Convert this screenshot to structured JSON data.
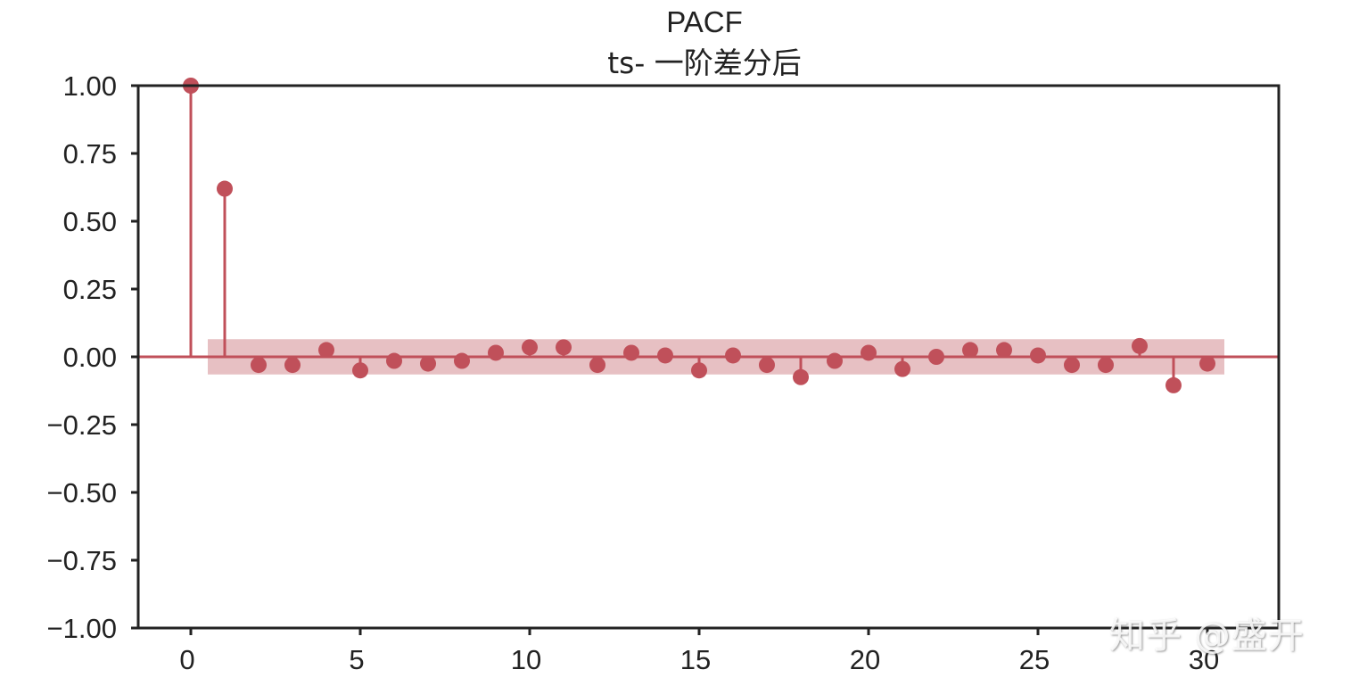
{
  "chart_data": {
    "type": "stem",
    "title": "PACF",
    "subtitle": "ts- 一阶差分后",
    "xlabel": "",
    "ylabel": "",
    "xlim": [
      -1.5,
      32.2
    ],
    "ylim": [
      -1.0,
      1.0
    ],
    "x_ticks": [
      0,
      5,
      10,
      15,
      20,
      25,
      30
    ],
    "x_tick_labels": [
      "0",
      "5",
      "10",
      "15",
      "20",
      "25",
      "30"
    ],
    "y_ticks": [
      1.0,
      0.75,
      0.5,
      0.25,
      0.0,
      -0.25,
      -0.5,
      -0.75,
      -1.0
    ],
    "y_tick_labels": [
      "1.00",
      "0.75",
      "0.50",
      "0.25",
      "0.00",
      "−0.25",
      "−0.50",
      "−0.75",
      "−1.00"
    ],
    "grid": false,
    "lags": [
      0,
      1,
      2,
      3,
      4,
      5,
      6,
      7,
      8,
      9,
      10,
      11,
      12,
      13,
      14,
      15,
      16,
      17,
      18,
      19,
      20,
      21,
      22,
      23,
      24,
      25,
      26,
      27,
      28,
      29,
      30
    ],
    "values": [
      1.0,
      0.62,
      -0.03,
      -0.03,
      0.025,
      -0.05,
      -0.015,
      -0.025,
      -0.015,
      0.015,
      0.035,
      0.035,
      -0.03,
      0.015,
      0.005,
      -0.05,
      0.005,
      -0.03,
      -0.075,
      -0.015,
      0.015,
      -0.045,
      0.0,
      0.025,
      0.025,
      0.005,
      -0.03,
      -0.03,
      0.04,
      -0.105,
      -0.025
    ],
    "confidence_band": {
      "x_start": 0.5,
      "x_end": 30.5,
      "upper": 0.065,
      "lower": -0.065
    },
    "colors": {
      "stem": "#C0505A",
      "marker": "#C0505A",
      "band": "#E4B9BD",
      "axis": "#222222"
    }
  },
  "watermark": "知乎 @盛开"
}
